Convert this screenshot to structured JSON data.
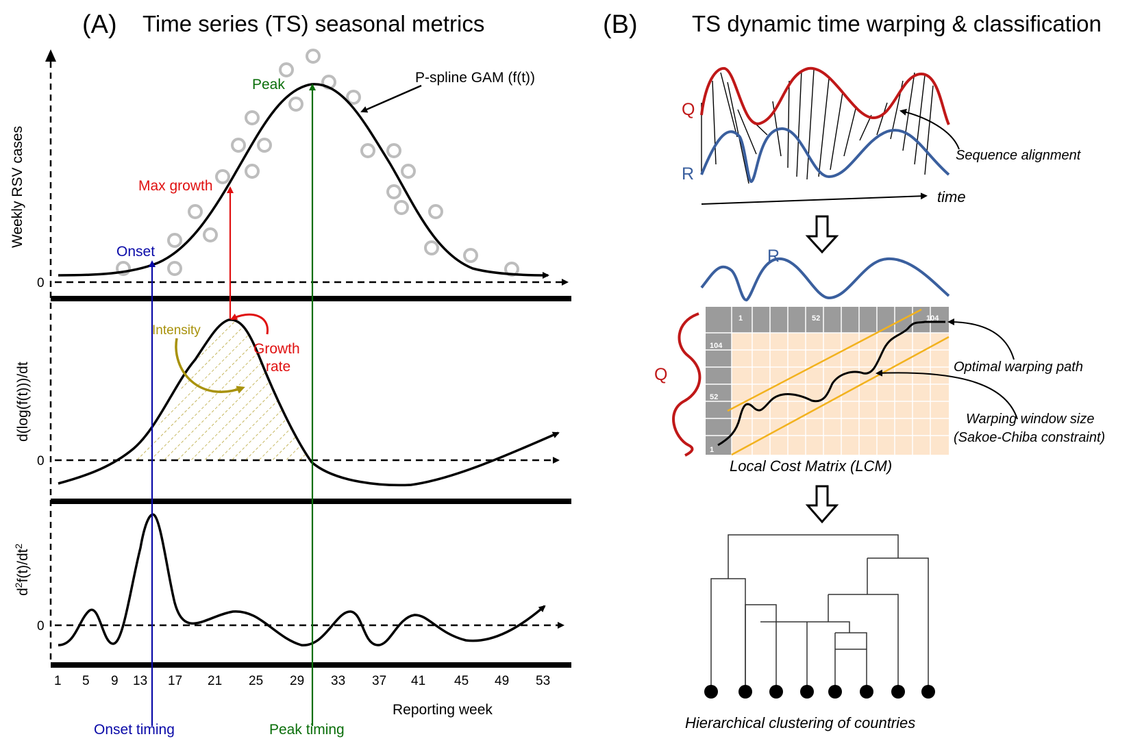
{
  "panel_a": {
    "letter": "(A)",
    "title": "Time series (TS) seasonal metrics",
    "top": {
      "ylabel": "Weekly RSV cases",
      "zero": "0",
      "gam_label": "P-spline GAM (f(t))",
      "peak": "Peak",
      "max_growth": "Max growth",
      "onset": "Onset"
    },
    "middle": {
      "ylabel": "d(log(f(t)))/dt",
      "zero": "0",
      "intensity": "Intensity",
      "growth_rate_1": "Growth",
      "growth_rate_2": "rate"
    },
    "bottom": {
      "ylabel_base": "d",
      "ylabel_sup1": "2",
      "ylabel_mid": "f(t)/dt",
      "ylabel_sup2": "2",
      "zero": "0"
    },
    "x_ticks": [
      "1",
      "5",
      "9",
      "13",
      "17",
      "21",
      "25",
      "29",
      "33",
      "37",
      "41",
      "45",
      "49",
      "53"
    ],
    "xlabel": "Reporting week",
    "onset_timing": "Onset timing",
    "peak_timing": "Peak timing",
    "colors": {
      "onset": "#0a0aa8",
      "peak": "#0a6e0a",
      "growth": "#e01010",
      "intensity": "#a8920c",
      "points": "#bdbdbd"
    }
  },
  "panel_b": {
    "letter": "(B)",
    "title": "TS dynamic time warping & classification",
    "q": "Q",
    "r": "R",
    "sequence_alignment": "Sequence alignment",
    "time": "time",
    "r2": "R",
    "q2": "Q",
    "lcm_top_1": "1",
    "lcm_top_52": "52",
    "lcm_top_104": "104",
    "lcm_left_104": "104",
    "lcm_left_52": "52",
    "lcm_left_1": "1",
    "optimal_path": "Optimal warping path",
    "window_1": "Warping window size",
    "window_2": "(Sakoe-Chiba constraint)",
    "lcm": "Local Cost Matrix (LCM)",
    "clustering": "Hierarchical clustering of countries",
    "colors": {
      "q": "#c01818",
      "r": "#3a5f9e",
      "grid": "#fde5cc",
      "header": "#9b9b9b",
      "window": "#f2b21e"
    }
  }
}
